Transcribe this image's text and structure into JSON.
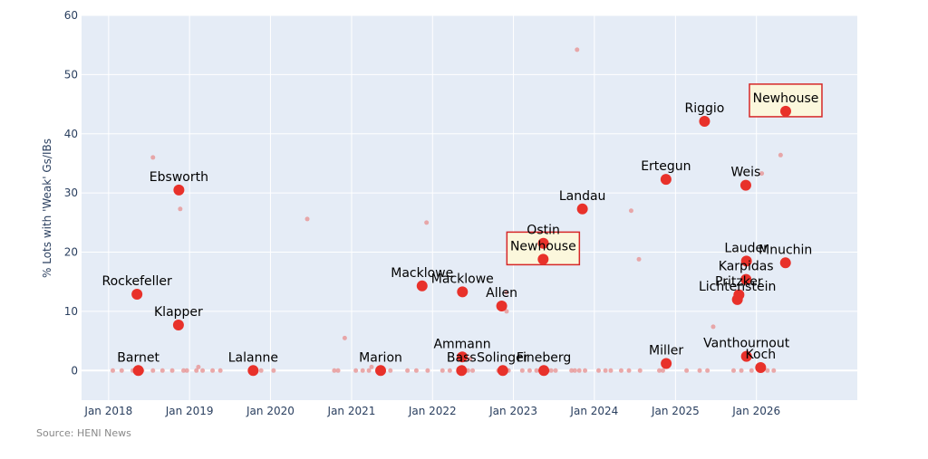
{
  "chart_data": {
    "type": "scatter",
    "title": "",
    "xlabel": "",
    "ylabel": "% Lots with 'Weak' Gs/IBs",
    "xlim": [
      "2017-09-01",
      "2027-04-01"
    ],
    "ylim": [
      -5,
      60
    ],
    "x_ticks": [
      {
        "date": "2018-01-01",
        "label": "Jan 2018"
      },
      {
        "date": "2019-01-01",
        "label": "Jan 2019"
      },
      {
        "date": "2020-01-01",
        "label": "Jan 2020"
      },
      {
        "date": "2021-01-01",
        "label": "Jan 2021"
      },
      {
        "date": "2022-01-01",
        "label": "Jan 2022"
      },
      {
        "date": "2023-01-01",
        "label": "Jan 2023"
      },
      {
        "date": "2024-01-01",
        "label": "Jan 2024"
      },
      {
        "date": "2025-01-01",
        "label": "Jan 2025"
      },
      {
        "date": "2026-01-01",
        "label": "Jan 2026"
      }
    ],
    "y_ticks": [
      0,
      10,
      20,
      30,
      40,
      50,
      60
    ],
    "grid": true,
    "colors": {
      "plot_bg": "#e5ecf6",
      "grid": "#ffffff",
      "highlight": "#e8312a",
      "minor": "#e89a9a",
      "box_fill": "#fbf7dc",
      "box_stroke": "#d62728"
    },
    "highlighted": [
      {
        "label": "Rockefeller",
        "x": "2018-05-09",
        "y": 12.9
      },
      {
        "label": "Barnet",
        "x": "2018-05-15",
        "y": 0.0
      },
      {
        "label": "Ebsworth",
        "x": "2018-11-14",
        "y": 30.5
      },
      {
        "label": "Klapper",
        "x": "2018-11-12",
        "y": 7.7
      },
      {
        "label": "Lalanne",
        "x": "2019-10-15",
        "y": 0.0
      },
      {
        "label": "Marion",
        "x": "2021-05-12",
        "y": 0.0
      },
      {
        "label": "Macklowe",
        "x": "2021-11-15",
        "y": 14.3
      },
      {
        "label": "Macklowe",
        "x": "2022-05-16",
        "y": 13.3
      },
      {
        "label": "Ammann",
        "x": "2022-05-15",
        "y": 2.3
      },
      {
        "label": "Bass",
        "x": "2022-05-12",
        "y": 0.0
      },
      {
        "label": "Allen",
        "x": "2022-11-09",
        "y": 10.9
      },
      {
        "label": "Solinger",
        "x": "2022-11-14",
        "y": 0.0
      },
      {
        "label": "Ostin",
        "x": "2023-05-16",
        "y": 21.5
      },
      {
        "label": "Newhouse",
        "x": "2023-05-15",
        "y": 18.8
      },
      {
        "label": "Fineberg",
        "x": "2023-05-18",
        "y": 0.0
      },
      {
        "label": "Landau",
        "x": "2023-11-08",
        "y": 27.3
      },
      {
        "label": "Ertegun",
        "x": "2024-11-19",
        "y": 32.3
      },
      {
        "label": "Miller",
        "x": "2024-11-20",
        "y": 1.2
      },
      {
        "label": "Riggio",
        "x": "2025-05-12",
        "y": 42.1
      },
      {
        "label": "Weis",
        "x": "2025-11-14",
        "y": 31.3
      },
      {
        "label": "Lauder",
        "x": "2025-11-17",
        "y": 18.5
      },
      {
        "label": "Karpidas",
        "x": "2025-11-15",
        "y": 15.4
      },
      {
        "label": "Pritzker",
        "x": "2025-10-14",
        "y": 12.8
      },
      {
        "label": "Lichtenstein",
        "x": "2025-10-07",
        "y": 12.0
      },
      {
        "label": "Vanthournout",
        "x": "2025-11-17",
        "y": 2.4
      },
      {
        "label": "Koch",
        "x": "2026-01-20",
        "y": 0.5
      },
      {
        "label": "Newhouse",
        "x": "2026-05-13",
        "y": 43.8
      },
      {
        "label": "Mnuchin",
        "x": "2026-05-12",
        "y": 18.2
      }
    ],
    "boxed_labels": [
      "Newhouse"
    ],
    "other_sales": [
      {
        "x": "2018-07-20",
        "y": 36.0
      },
      {
        "x": "2018-11-20",
        "y": 27.3
      },
      {
        "x": "2020-06-15",
        "y": 25.6
      },
      {
        "x": "2021-12-05",
        "y": 25.0
      },
      {
        "x": "2020-12-01",
        "y": 5.5
      },
      {
        "x": "2019-02-10",
        "y": 0.6
      },
      {
        "x": "2021-04-01",
        "y": 0.6
      },
      {
        "x": "2022-06-20",
        "y": 2.0
      },
      {
        "x": "2022-12-01",
        "y": 13.2
      },
      {
        "x": "2022-12-01",
        "y": 10.0
      },
      {
        "x": "2023-10-15",
        "y": 54.2
      },
      {
        "x": "2024-06-15",
        "y": 27.0
      },
      {
        "x": "2024-07-20",
        "y": 18.8
      },
      {
        "x": "2025-06-20",
        "y": 7.4
      },
      {
        "x": "2026-01-25",
        "y": 33.3
      },
      {
        "x": "2026-04-20",
        "y": 36.4
      },
      {
        "x": "2018-01-20",
        "y": 0
      },
      {
        "x": "2018-03-01",
        "y": 0
      },
      {
        "x": "2018-04-20",
        "y": 0
      },
      {
        "x": "2018-06-01",
        "y": 0
      },
      {
        "x": "2018-07-20",
        "y": 0
      },
      {
        "x": "2018-09-01",
        "y": 0
      },
      {
        "x": "2018-10-15",
        "y": 0
      },
      {
        "x": "2018-12-05",
        "y": 0
      },
      {
        "x": "2018-12-20",
        "y": 0
      },
      {
        "x": "2019-02-01",
        "y": 0
      },
      {
        "x": "2019-03-01",
        "y": 0
      },
      {
        "x": "2019-04-15",
        "y": 0
      },
      {
        "x": "2019-05-20",
        "y": 0
      },
      {
        "x": "2019-11-20",
        "y": 0
      },
      {
        "x": "2020-01-15",
        "y": 0
      },
      {
        "x": "2020-10-15",
        "y": 0
      },
      {
        "x": "2020-11-01",
        "y": 0
      },
      {
        "x": "2021-01-20",
        "y": 0
      },
      {
        "x": "2021-02-20",
        "y": 0
      },
      {
        "x": "2021-03-20",
        "y": 0
      },
      {
        "x": "2021-06-25",
        "y": 0
      },
      {
        "x": "2021-09-10",
        "y": 0
      },
      {
        "x": "2021-10-20",
        "y": 0
      },
      {
        "x": "2021-12-10",
        "y": 0
      },
      {
        "x": "2022-02-15",
        "y": 0
      },
      {
        "x": "2022-03-20",
        "y": 0
      },
      {
        "x": "2022-06-10",
        "y": 0
      },
      {
        "x": "2022-07-01",
        "y": 0
      },
      {
        "x": "2022-10-25",
        "y": 0
      },
      {
        "x": "2022-12-10",
        "y": 0
      },
      {
        "x": "2023-02-10",
        "y": 0
      },
      {
        "x": "2023-03-15",
        "y": 0
      },
      {
        "x": "2023-04-15",
        "y": 0
      },
      {
        "x": "2023-06-05",
        "y": 0
      },
      {
        "x": "2023-06-20",
        "y": 0
      },
      {
        "x": "2023-07-10",
        "y": 0
      },
      {
        "x": "2023-09-20",
        "y": 0
      },
      {
        "x": "2023-10-05",
        "y": 0
      },
      {
        "x": "2023-10-25",
        "y": 0
      },
      {
        "x": "2023-11-20",
        "y": 0
      },
      {
        "x": "2024-01-20",
        "y": 0
      },
      {
        "x": "2024-02-20",
        "y": 0
      },
      {
        "x": "2024-03-15",
        "y": 0
      },
      {
        "x": "2024-05-01",
        "y": 0
      },
      {
        "x": "2024-06-05",
        "y": 0
      },
      {
        "x": "2024-07-25",
        "y": 0
      },
      {
        "x": "2024-10-20",
        "y": 0
      },
      {
        "x": "2024-11-05",
        "y": 0
      },
      {
        "x": "2025-02-20",
        "y": 0
      },
      {
        "x": "2025-04-20",
        "y": 0
      },
      {
        "x": "2025-05-25",
        "y": 0
      },
      {
        "x": "2025-09-20",
        "y": 0
      },
      {
        "x": "2025-10-25",
        "y": 0
      },
      {
        "x": "2025-12-10",
        "y": 0
      },
      {
        "x": "2026-02-20",
        "y": 0
      },
      {
        "x": "2026-03-20",
        "y": 0
      }
    ],
    "source": "Source: HENI News"
  }
}
